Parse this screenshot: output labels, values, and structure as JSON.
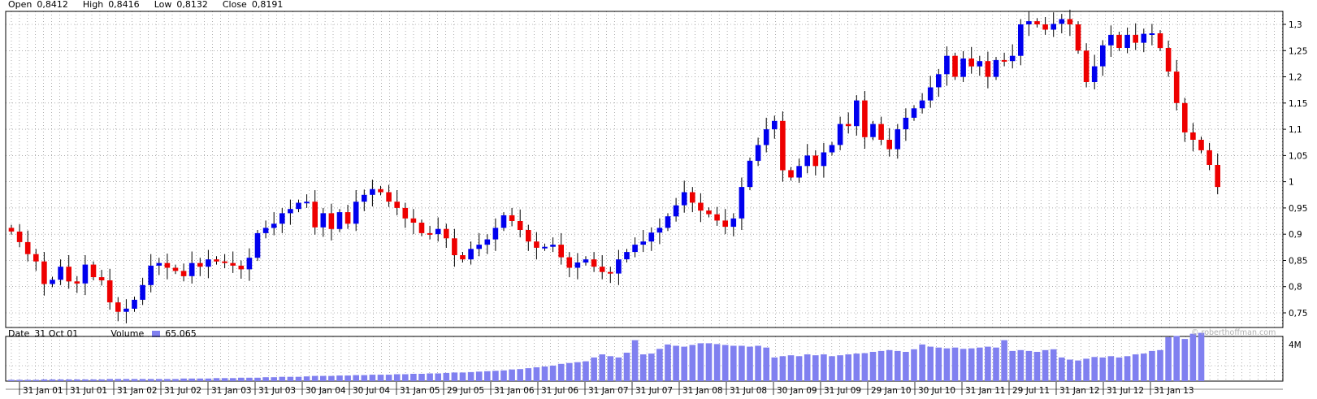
{
  "header": {
    "open_label": "Open",
    "open_value": "0,8412",
    "high_label": "High",
    "high_value": "0,8416",
    "low_label": "Low",
    "low_value": "0,8132",
    "close_label": "Close",
    "close_value": "0,8191"
  },
  "volume_header": {
    "date_label": "Date",
    "date_value": "31 Oct 01",
    "volume_label": "Volume",
    "volume_value": "65.065"
  },
  "watermark": "© roberthoffman.com",
  "colors": {
    "up": "#0000ee",
    "down": "#ee0000",
    "volume": "#8080f0",
    "grid": "#7a7a7a"
  },
  "chart_data": [
    {
      "type": "candlestick",
      "period": "monthly",
      "y_ticks": [
        "0,75",
        "0,8",
        "0,85",
        "0,9",
        "0,95",
        "1",
        "1,05",
        "1,1",
        "1,15",
        "1,2",
        "1,25",
        "1,3"
      ],
      "ylim": [
        0.745,
        1.32
      ],
      "x_ticks": [
        "31 Jan 01",
        "31 Jul 01",
        "31 Jan 02",
        "31 Jul 02",
        "31 Jan 03",
        "31 Jul 03",
        "30 Jan 04",
        "30 Jul 04",
        "31 Jan 05",
        "29 Jul 05",
        "31 Jan 06",
        "31 Jul 06",
        "31 Jan 07",
        "31 Jul 07",
        "31 Jan 08",
        "31 Jul 08",
        "30 Jan 09",
        "31 Jul 09",
        "29 Jan 10",
        "30 Jul 10",
        "31 Jan 11",
        "29 Jul 11",
        "31 Jan 12",
        "31 Jul 12",
        "31 Jan 13"
      ],
      "grid": true,
      "closes": [
        0.905,
        0.885,
        0.862,
        0.848,
        0.805,
        0.813,
        0.838,
        0.81,
        0.806,
        0.842,
        0.818,
        0.812,
        0.77,
        0.752,
        0.758,
        0.775,
        0.803,
        0.84,
        0.845,
        0.836,
        0.83,
        0.82,
        0.845,
        0.838,
        0.852,
        0.848,
        0.845,
        0.84,
        0.833,
        0.855,
        0.902,
        0.912,
        0.92,
        0.94,
        0.948,
        0.96,
        0.962,
        0.913,
        0.94,
        0.91,
        0.942,
        0.92,
        0.962,
        0.975,
        0.986,
        0.98,
        0.962,
        0.95,
        0.93,
        0.922,
        0.902,
        0.9,
        0.91,
        0.892,
        0.86,
        0.852,
        0.872,
        0.88,
        0.89,
        0.912,
        0.936,
        0.925,
        0.908,
        0.886,
        0.874,
        0.876,
        0.88,
        0.856,
        0.836,
        0.846,
        0.852,
        0.838,
        0.828,
        0.825,
        0.852,
        0.866,
        0.88,
        0.886,
        0.903,
        0.912,
        0.934,
        0.955,
        0.98,
        0.96,
        0.945,
        0.938,
        0.926,
        0.914,
        0.93,
        0.99,
        1.04,
        1.07,
        1.1,
        1.116,
        1.022,
        1.008,
        1.03,
        1.05,
        1.03,
        1.056,
        1.07,
        1.11,
        1.106,
        1.155,
        1.085,
        1.11,
        1.08,
        1.062,
        1.1,
        1.122,
        1.14,
        1.155,
        1.18,
        1.205,
        1.24,
        1.2,
        1.235,
        1.22,
        1.23,
        1.2,
        1.232,
        1.23,
        1.24,
        1.3,
        1.306,
        1.3,
        1.29,
        1.301,
        1.31,
        1.3,
        1.25,
        1.19,
        1.22,
        1.26,
        1.28,
        1.255,
        1.28,
        1.265,
        1.282,
        1.283,
        1.255,
        1.21,
        1.15,
        1.094,
        1.08,
        1.06,
        1.032,
        0.99
      ],
      "volumes": [
        0.03,
        0.03,
        0.03,
        0.03,
        0.04,
        0.04,
        0.04,
        0.04,
        0.04,
        0.04,
        0.04,
        0.04,
        0.05,
        0.05,
        0.05,
        0.05,
        0.05,
        0.05,
        0.05,
        0.05,
        0.05,
        0.06,
        0.06,
        0.06,
        0.06,
        0.07,
        0.07,
        0.07,
        0.08,
        0.08,
        0.08,
        0.09,
        0.09,
        0.1,
        0.1,
        0.1,
        0.11,
        0.12,
        0.12,
        0.12,
        0.13,
        0.13,
        0.14,
        0.14,
        0.15,
        0.15,
        0.15,
        0.16,
        0.16,
        0.17,
        0.17,
        0.18,
        0.18,
        0.19,
        0.2,
        0.2,
        0.21,
        0.22,
        0.23,
        0.24,
        0.25,
        0.27,
        0.28,
        0.3,
        0.32,
        0.34,
        0.36,
        0.4,
        0.42,
        0.44,
        0.46,
        0.55,
        0.62,
        0.58,
        0.55,
        0.66,
        0.95,
        0.62,
        0.64,
        0.75,
        0.85,
        0.82,
        0.8,
        0.84,
        0.88,
        0.88,
        0.86,
        0.84,
        0.82,
        0.82,
        0.8,
        0.82,
        0.78,
        0.55,
        0.58,
        0.6,
        0.58,
        0.62,
        0.6,
        0.62,
        0.58,
        0.6,
        0.62,
        0.64,
        0.65,
        0.68,
        0.7,
        0.72,
        0.7,
        0.68,
        0.74,
        0.85,
        0.8,
        0.78,
        0.76,
        0.78,
        0.75,
        0.76,
        0.78,
        0.8,
        0.78,
        0.95,
        0.7,
        0.72,
        0.7,
        0.68,
        0.72,
        0.74,
        0.55,
        0.5,
        0.48,
        0.52,
        0.56,
        0.55,
        0.58,
        0.55,
        0.58,
        0.62,
        0.64,
        0.7,
        0.72,
        1.02,
        1.05,
        0.98,
        1.1,
        1.12
      ]
    }
  ]
}
